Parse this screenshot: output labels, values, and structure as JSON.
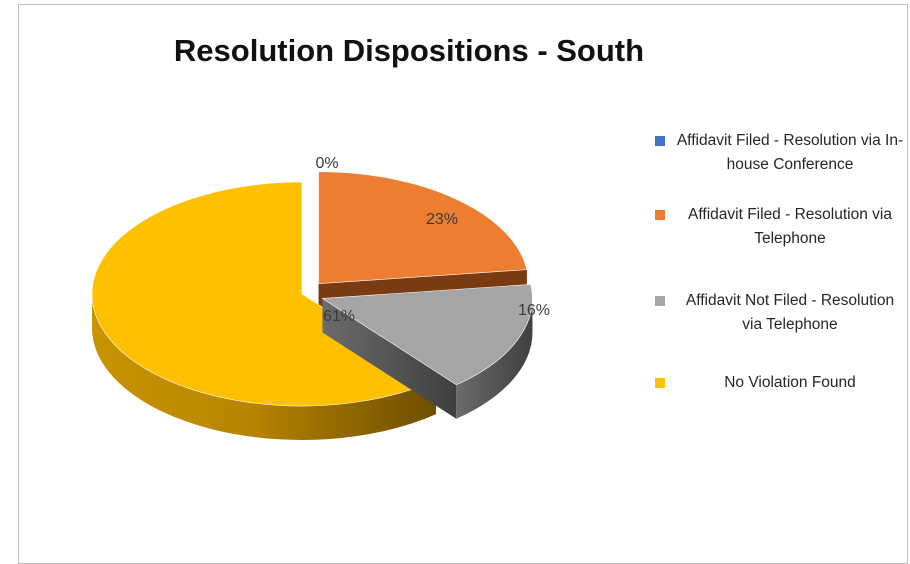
{
  "chart_data": {
    "type": "pie",
    "title": "Resolution Dispositions - South",
    "categories": [
      "Affidavit Filed - Resolution via In-house Conference",
      "Affidavit Filed - Resolution via Telephone",
      "Affidavit Not Filed - Resolution via Telephone",
      "No Violation Found"
    ],
    "values": [
      0,
      23,
      16,
      61
    ],
    "data_labels": [
      "0%",
      "23%",
      "16%",
      "61%"
    ],
    "colors": [
      "#4472C4",
      "#ED7D31",
      "#A5A5A5",
      "#FFC000"
    ],
    "legend_position": "right",
    "style": "3D exploded pie"
  }
}
